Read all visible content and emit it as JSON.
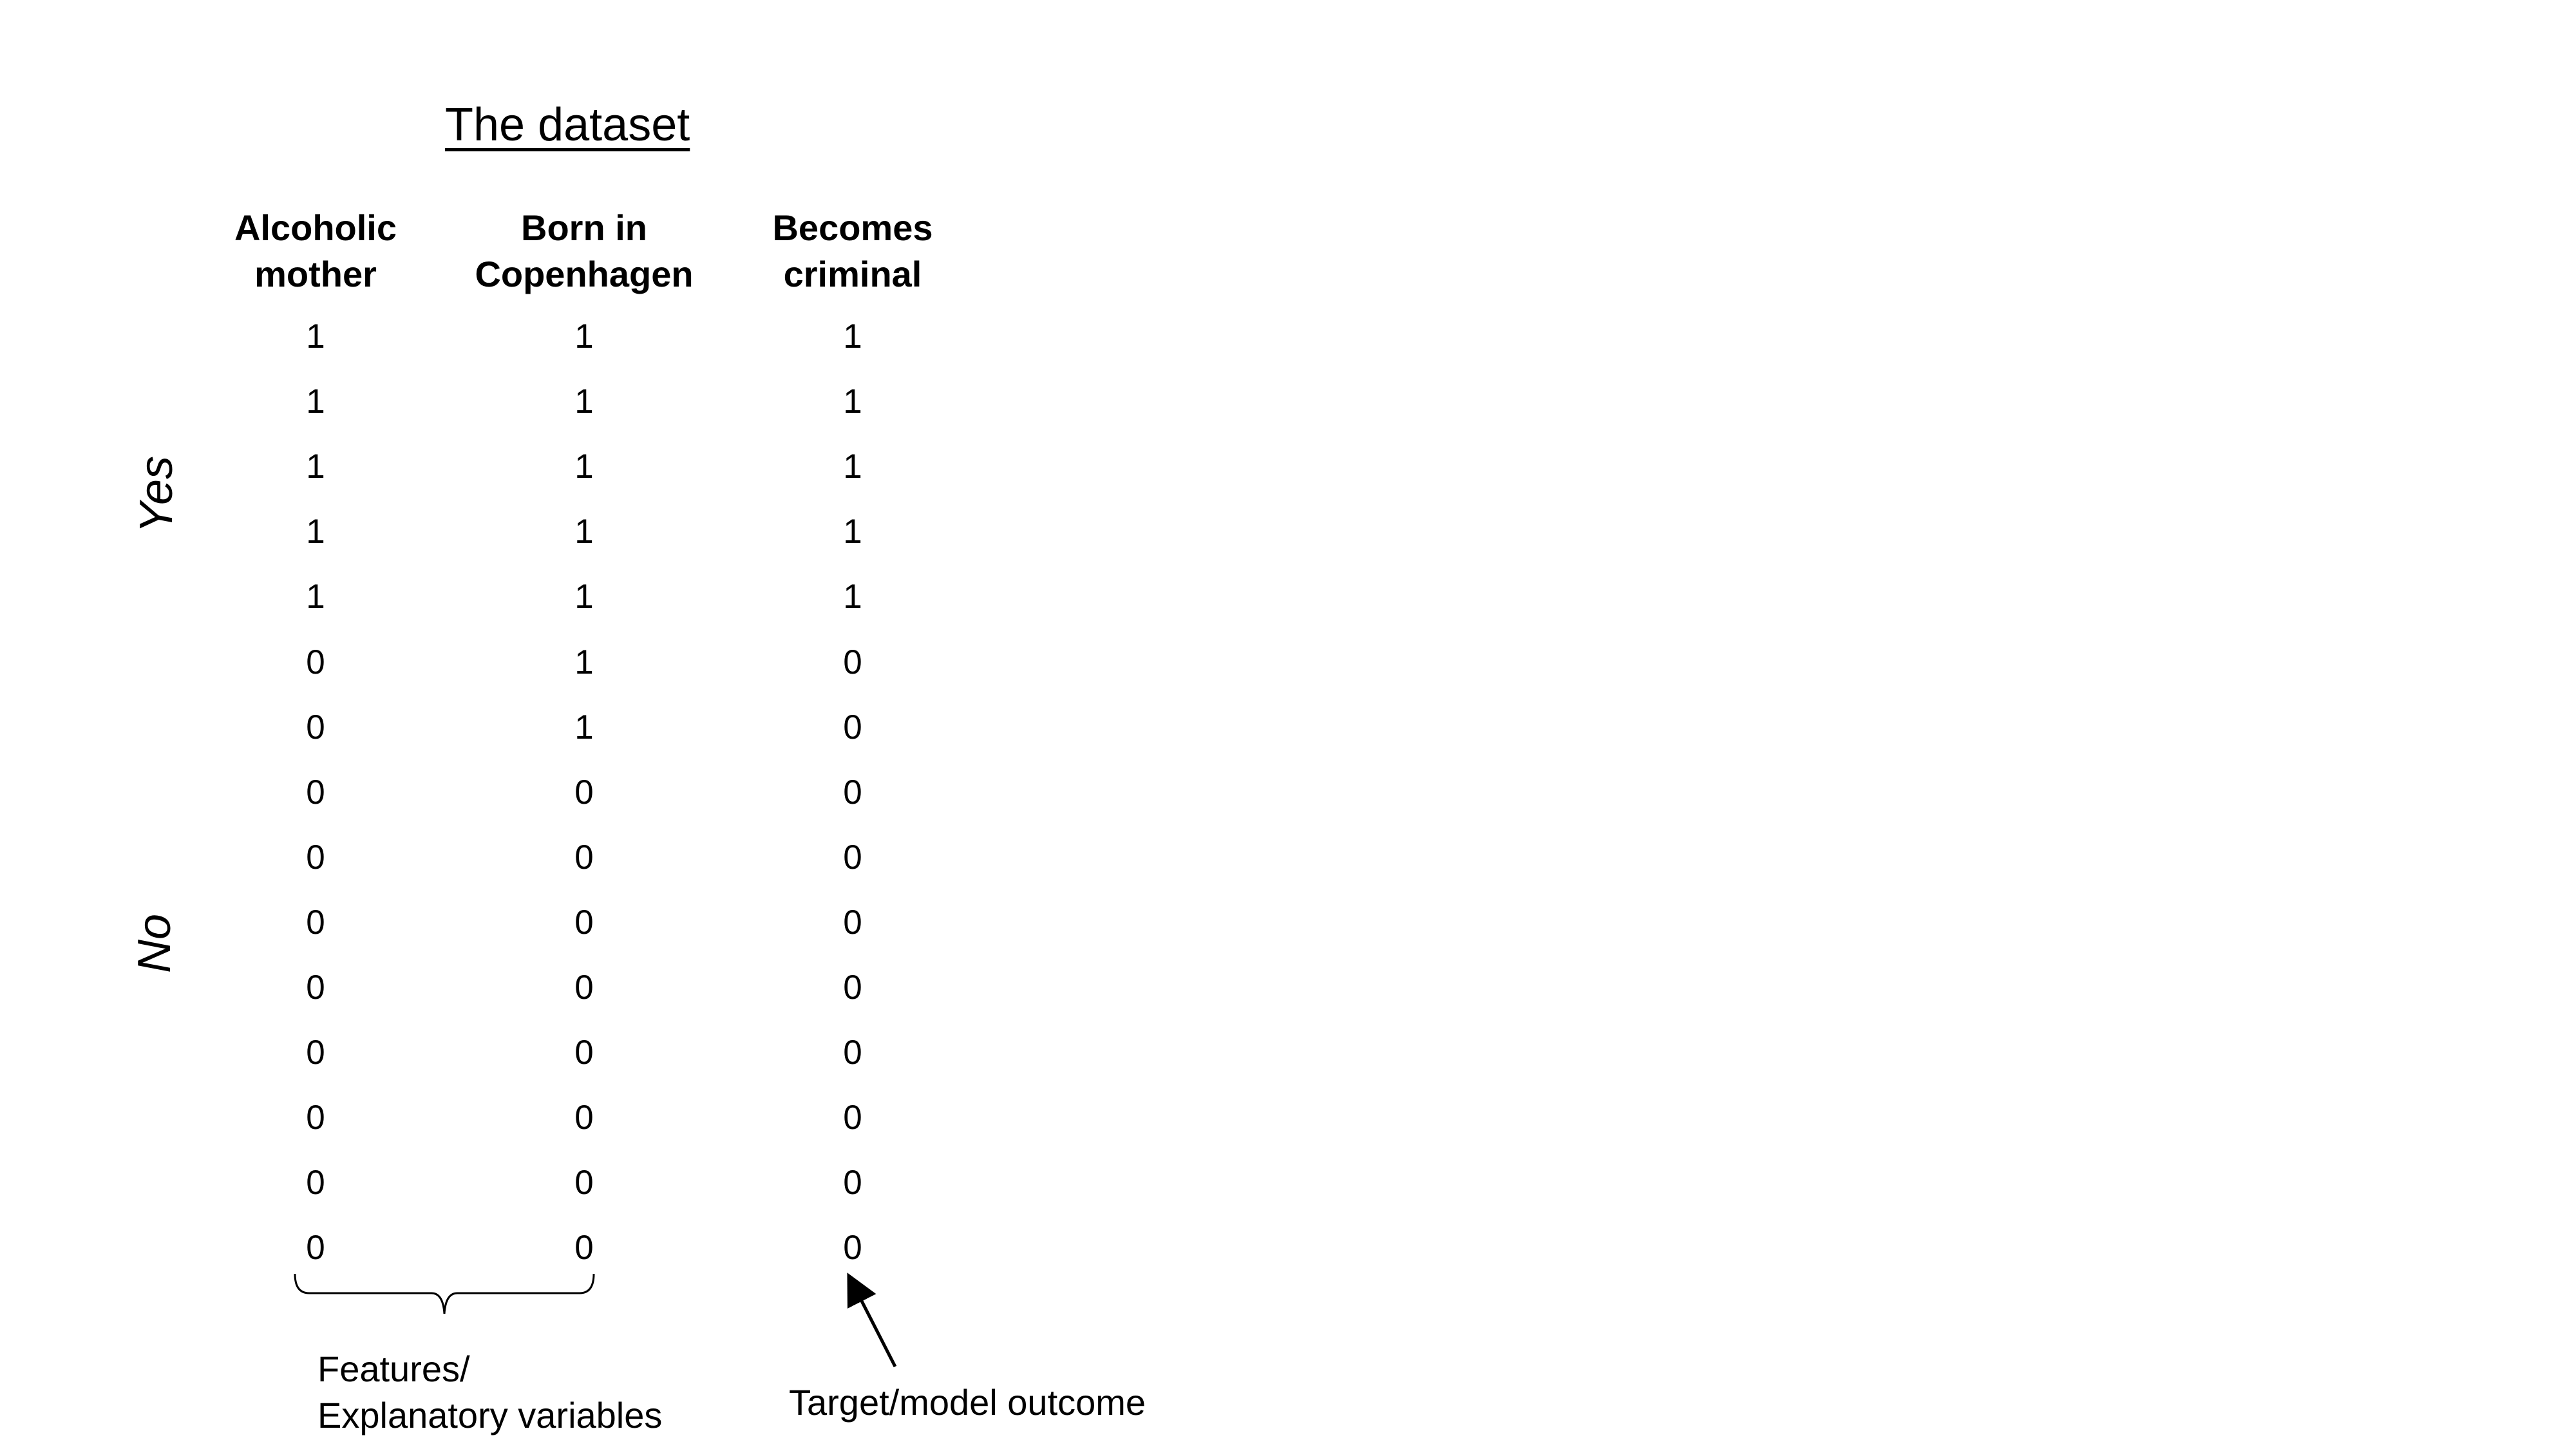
{
  "title": "The dataset",
  "columns": [
    {
      "line1": "Alcoholic",
      "line2": "mother"
    },
    {
      "line1": "Born in",
      "line2": "Copenhagen"
    },
    {
      "line1": "Becomes",
      "line2": "criminal"
    }
  ],
  "rows": [
    [
      1,
      1,
      1
    ],
    [
      1,
      1,
      1
    ],
    [
      1,
      1,
      1
    ],
    [
      1,
      1,
      1
    ],
    [
      1,
      1,
      1
    ],
    [
      0,
      1,
      0
    ],
    [
      0,
      1,
      0
    ],
    [
      0,
      0,
      0
    ],
    [
      0,
      0,
      0
    ],
    [
      0,
      0,
      0
    ],
    [
      0,
      0,
      0
    ],
    [
      0,
      0,
      0
    ],
    [
      0,
      0,
      0
    ],
    [
      0,
      0,
      0
    ],
    [
      0,
      0,
      0
    ]
  ],
  "group_labels": {
    "yes": "Yes",
    "no": "No"
  },
  "annotations": {
    "features_line1": "Features/",
    "features_line2": "Explanatory variables",
    "target": "Target/model outcome"
  }
}
